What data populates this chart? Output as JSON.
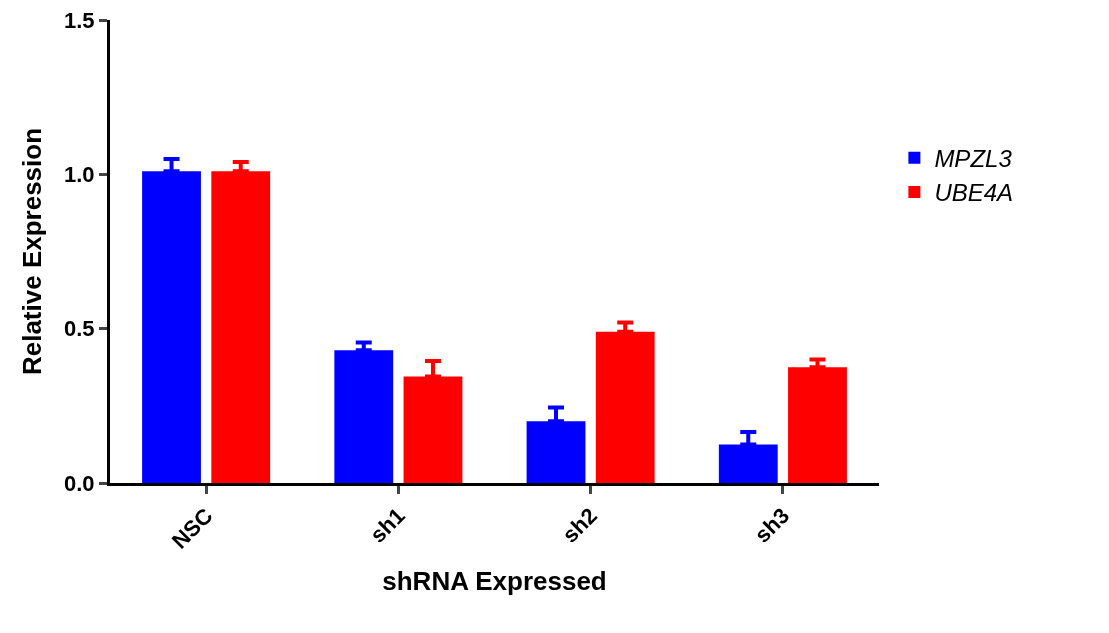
{
  "chart_data": {
    "type": "bar",
    "xlabel": "shRNA Expressed",
    "ylabel": "Relative Expression",
    "categories": [
      "NSC",
      "sh1",
      "sh2",
      "sh3"
    ],
    "series": [
      {
        "name": "MPZL3",
        "color": "#0000ff",
        "values": [
          1.01,
          0.43,
          0.2,
          0.125
        ],
        "errors": [
          [
            1.01,
            1.05
          ],
          [
            0.43,
            0.455
          ],
          [
            0.2,
            0.245
          ],
          [
            0.125,
            0.165
          ]
        ]
      },
      {
        "name": "UBE4A",
        "color": "#ff0000",
        "values": [
          1.01,
          0.345,
          0.49,
          0.375
        ],
        "errors": [
          [
            1.01,
            1.04
          ],
          [
            0.345,
            0.395
          ],
          [
            0.49,
            0.52
          ],
          [
            0.375,
            0.4
          ]
        ]
      }
    ],
    "ylim": [
      0,
      1.5
    ],
    "yticks": [
      {
        "value": 0,
        "label": "0.0"
      },
      0.5,
      {
        "value": 1,
        "label": "1.0"
      },
      1.5
    ],
    "grid": false,
    "legend": "right"
  }
}
